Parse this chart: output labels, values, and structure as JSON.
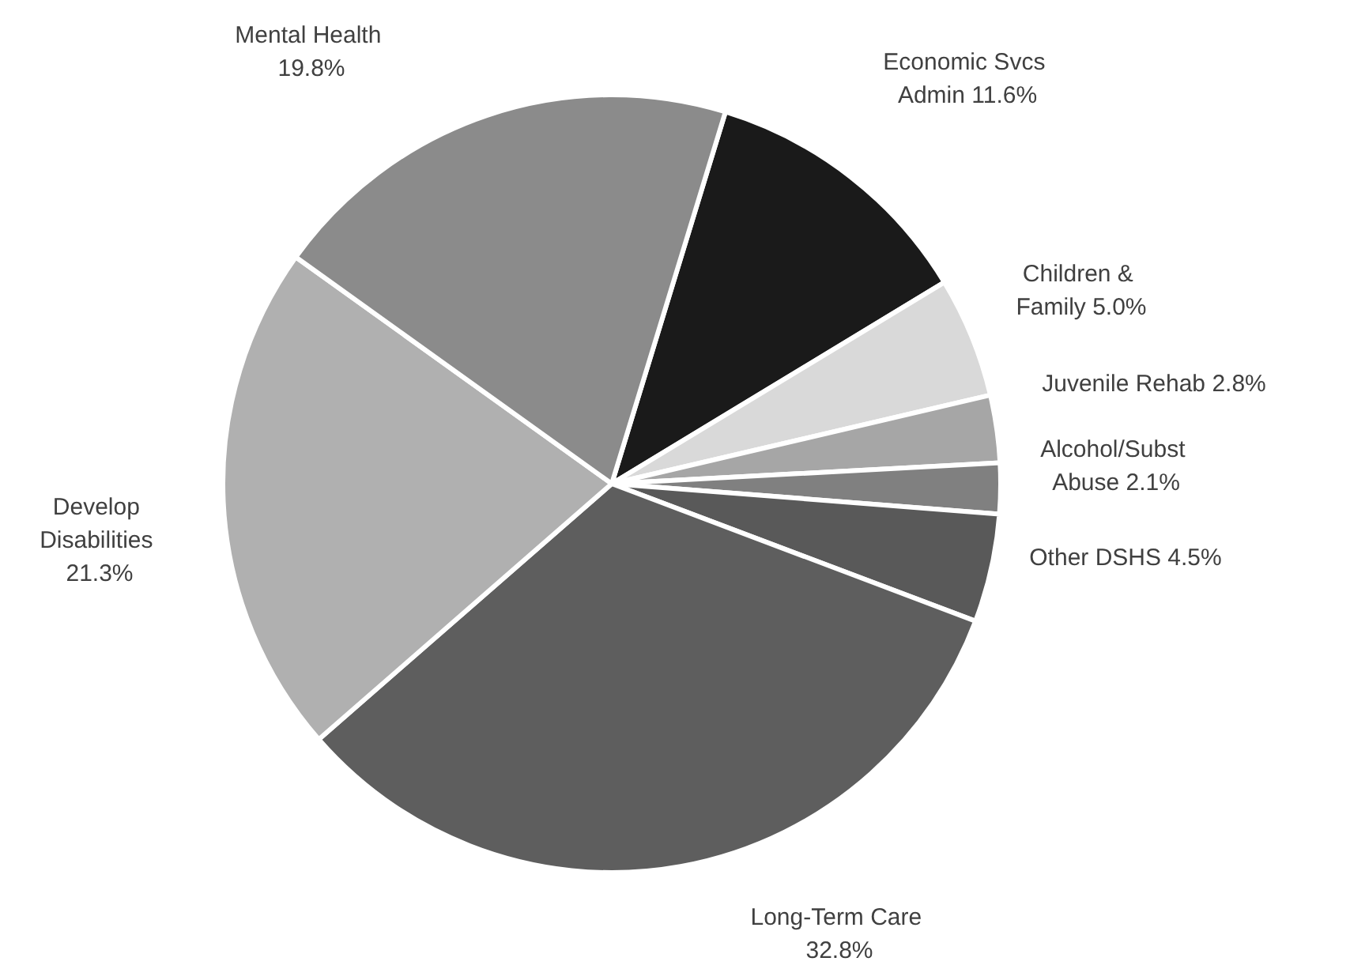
{
  "chart_data": {
    "type": "pie",
    "categories": [
      "Economic Svcs Admin",
      "Children & Family",
      "Juvenile Rehab",
      "Alcohol/Subst Abuse",
      "Other DSHS",
      "Long-Term Care",
      "Develop Disabilities",
      "Mental Health"
    ],
    "values": [
      11.6,
      5.0,
      2.8,
      2.1,
      4.5,
      32.8,
      21.3,
      19.8
    ],
    "colors": [
      "#1a1a1a",
      "#d9d9d9",
      "#a6a6a6",
      "#808080",
      "#595959",
      "#5e5e5e",
      "#b0b0b0",
      "#8b8b8b"
    ],
    "value_labels": [
      "11.6%",
      "5.0%",
      "2.8%",
      "2.1%",
      "4.5%",
      "32.8%",
      "21.3%",
      "19.8%"
    ]
  }
}
